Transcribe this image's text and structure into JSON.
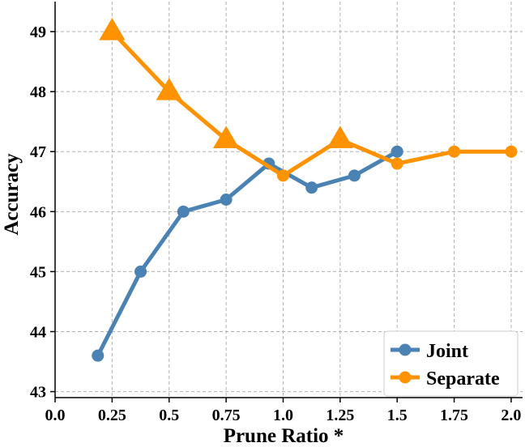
{
  "chart_data": {
    "type": "line",
    "title": "",
    "xlabel": "Prune Ratio *",
    "ylabel": "Accuracy",
    "xlim": [
      0.0,
      2.05
    ],
    "ylim": [
      42.9,
      49.5
    ],
    "x_ticks": [
      0.0,
      0.25,
      0.5,
      0.75,
      1.0,
      1.25,
      1.5,
      1.75,
      2.0
    ],
    "x_tick_labels": [
      "0.0",
      "0.25",
      "0.5",
      "0.75",
      "1.0",
      "1.25",
      "1.5",
      "1.75",
      "2.0"
    ],
    "y_ticks": [
      43,
      44,
      45,
      46,
      47,
      48,
      49
    ],
    "y_tick_labels": [
      "43",
      "44",
      "45",
      "46",
      "47",
      "48",
      "49"
    ],
    "grid": true,
    "legend_position": "bottom-right",
    "series": [
      {
        "name": "Joint",
        "color": "#4a82b4",
        "marker": "circle",
        "x": [
          0.1875,
          0.375,
          0.5625,
          0.75,
          0.9375,
          1.125,
          1.3125,
          1.5
        ],
        "y": [
          43.6,
          45.0,
          46.0,
          46.2,
          46.8,
          46.4,
          46.6,
          47.0
        ]
      },
      {
        "name": "Separate",
        "color": "#ff9200",
        "marker": "mixed",
        "x": [
          0.25,
          0.5,
          0.75,
          1.0,
          1.25,
          1.5,
          1.75,
          2.0
        ],
        "y": [
          49.0,
          48.0,
          47.2,
          46.6,
          47.2,
          46.8,
          47.0,
          47.0
        ],
        "point_markers": [
          "triangle",
          "triangle",
          "triangle",
          "circle",
          "triangle",
          "circle",
          "circle",
          "circle"
        ]
      }
    ]
  }
}
